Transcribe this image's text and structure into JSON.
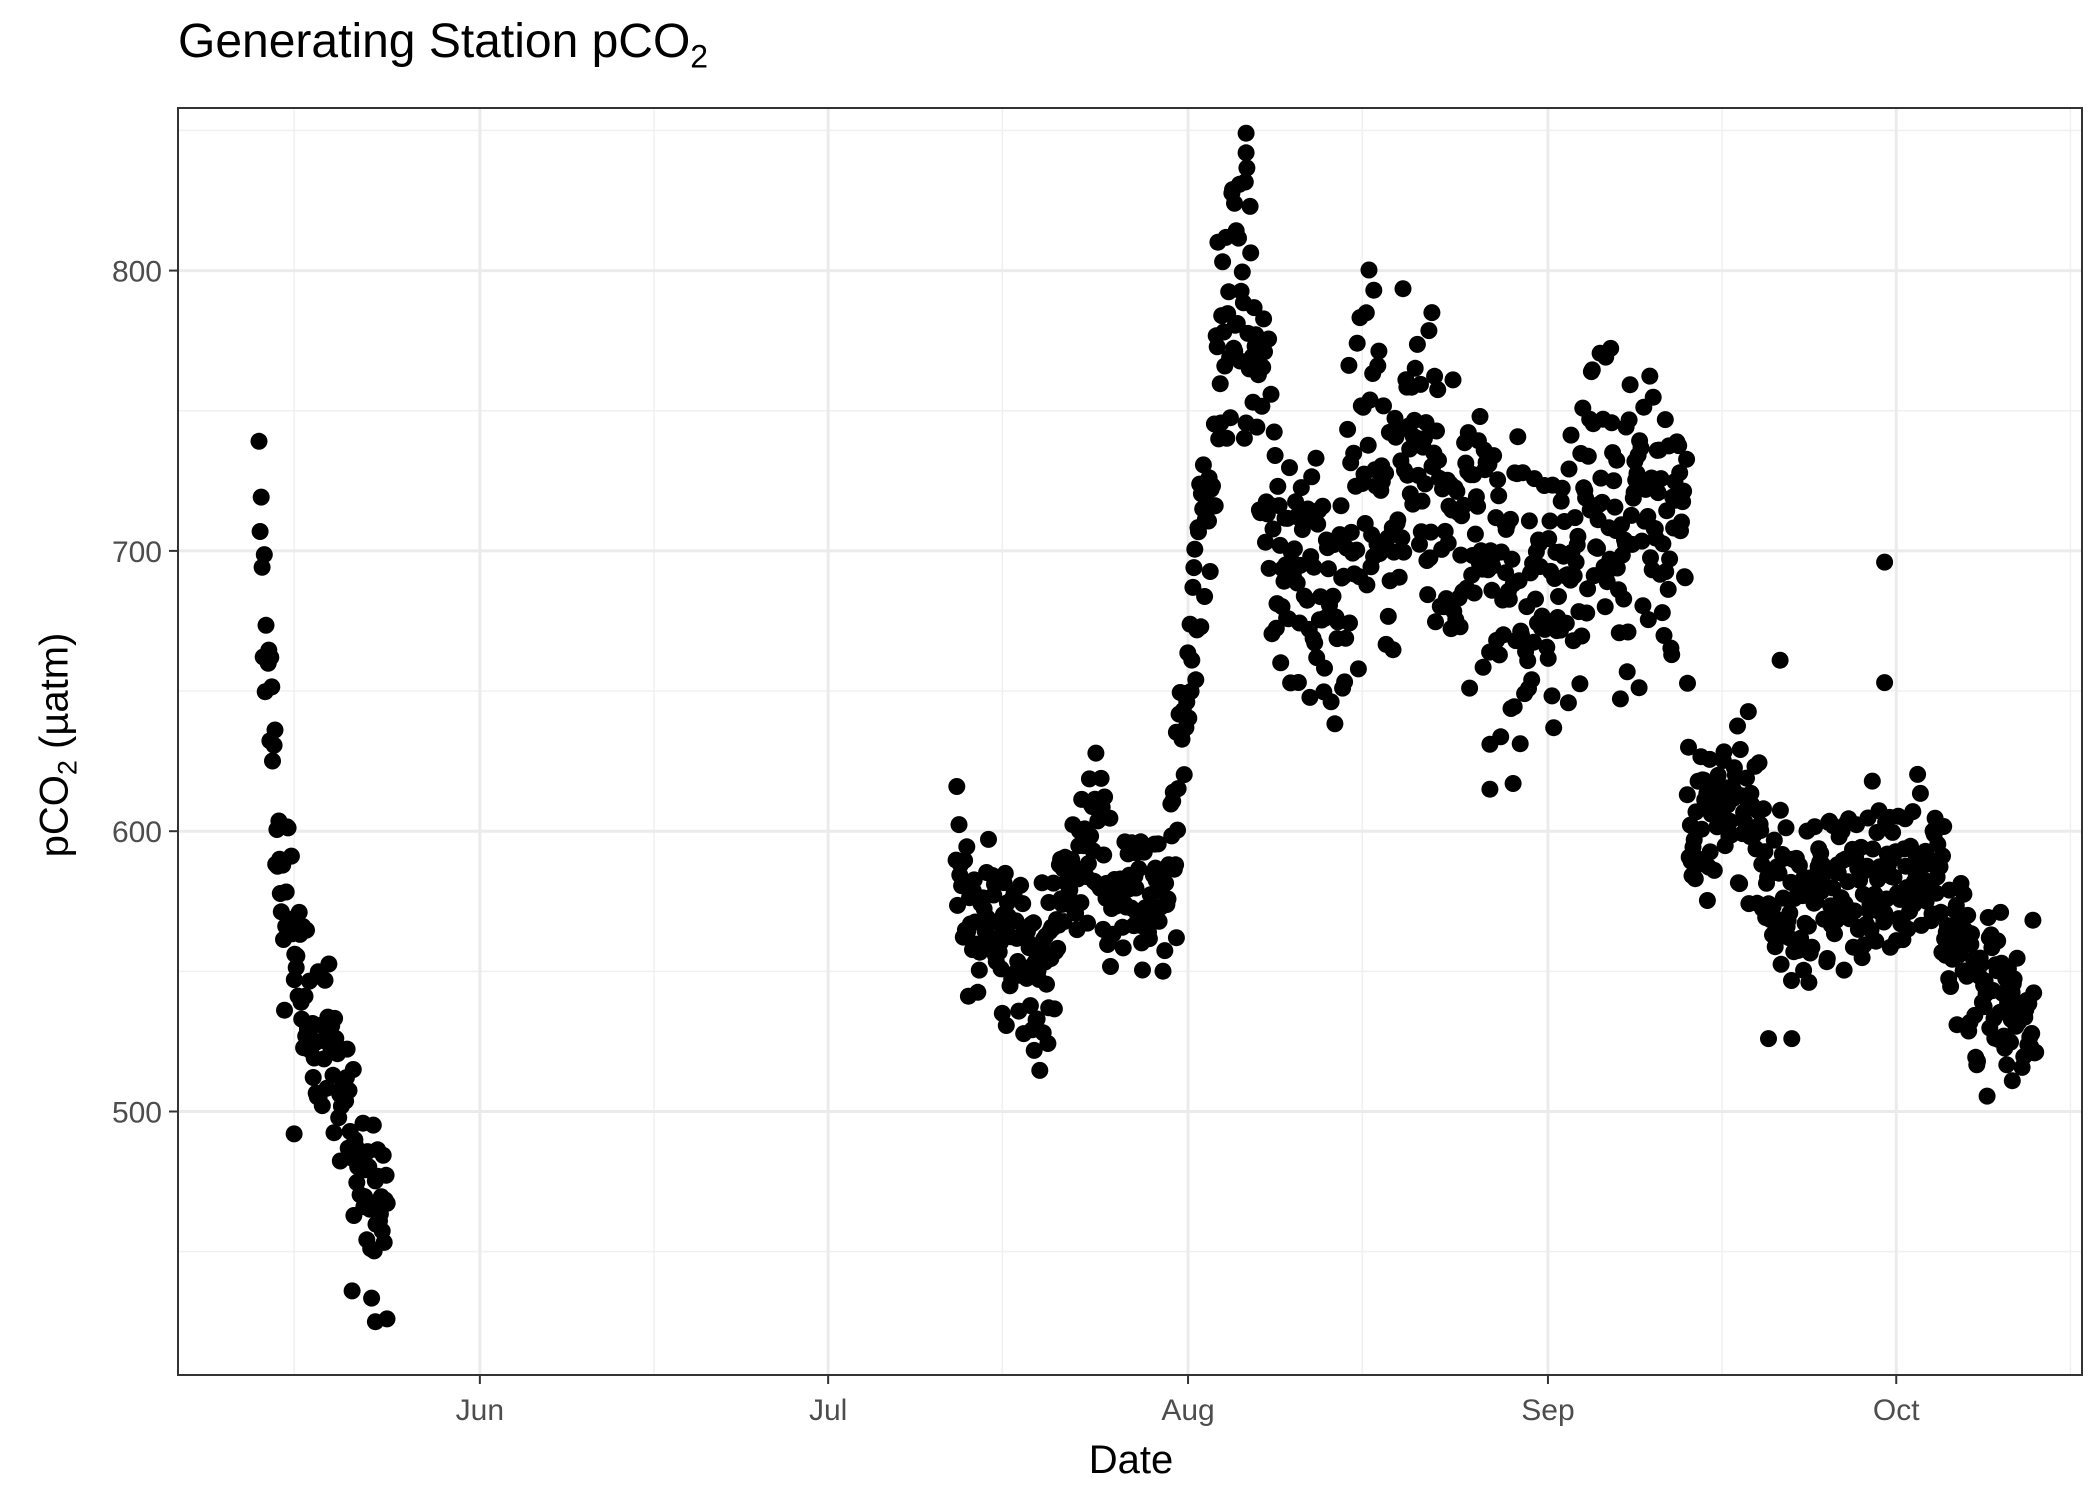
{
  "chart_data": {
    "type": "scatter",
    "title": "Generating Station pCO",
    "title_subscript": "2",
    "xlabel": "Date",
    "ylabel_main": "pCO",
    "ylabel_subscript": "2",
    "ylabel_unit": "(µatm)",
    "x_axis": {
      "type": "date",
      "range": [
        "2023-05-06",
        "2023-10-17"
      ],
      "ticks": [
        {
          "date": "2023-06-01",
          "label": "Jun"
        },
        {
          "date": "2023-07-01",
          "label": "Jul"
        },
        {
          "date": "2023-08-01",
          "label": "Aug"
        },
        {
          "date": "2023-09-01",
          "label": "Sep"
        },
        {
          "date": "2023-10-01",
          "label": "Oct"
        }
      ],
      "minor_ticks": [
        "2023-05-16",
        "2023-06-16",
        "2023-07-16",
        "2023-08-16",
        "2023-09-16",
        "2023-10-16"
      ]
    },
    "y_axis": {
      "range": [
        406,
        858
      ],
      "ticks": [
        500,
        600,
        700,
        800
      ],
      "minor_ticks": [
        450,
        550,
        650,
        750,
        850
      ]
    },
    "grid": true,
    "point_color": "#000000",
    "series_trend": [
      {
        "x": [
          "2023-05-13",
          "2023-05-13 12:00",
          "2023-05-14",
          "2023-05-14 12:00",
          "2023-05-15",
          "2023-05-15 12:00",
          "2023-05-16",
          "2023-05-16 12:00",
          "2023-05-17",
          "2023-05-17 12:00",
          "2023-05-18",
          "2023-05-18 12:00",
          "2023-05-19",
          "2023-05-19 12:00",
          "2023-05-20",
          "2023-05-20 12:00",
          "2023-05-21",
          "2023-05-21 12:00",
          "2023-05-22",
          "2023-05-22 12:00",
          "2023-05-23",
          "2023-05-23 12:00",
          "2023-05-24"
        ],
        "y": [
          720,
          680,
          650,
          600,
          560,
          590,
          570,
          545,
          530,
          535,
          525,
          530,
          515,
          520,
          500,
          510,
          495,
          490,
          470,
          470,
          455,
          460,
          465
        ]
      },
      {
        "x": [
          "2023-07-12",
          "2023-07-13",
          "2023-07-14",
          "2023-07-15",
          "2023-07-16",
          "2023-07-17",
          "2023-07-18",
          "2023-07-19",
          "2023-07-20",
          "2023-07-21",
          "2023-07-22",
          "2023-07-23",
          "2023-07-24",
          "2023-07-25",
          "2023-07-26",
          "2023-07-27",
          "2023-07-28",
          "2023-07-29",
          "2023-07-30",
          "2023-07-31",
          "2023-08-01",
          "2023-08-02",
          "2023-08-03",
          "2023-08-04",
          "2023-08-05",
          "2023-08-06",
          "2023-08-07",
          "2023-08-08",
          "2023-08-09",
          "2023-08-10",
          "2023-08-11",
          "2023-08-12",
          "2023-08-13",
          "2023-08-14",
          "2023-08-15",
          "2023-08-16",
          "2023-08-17",
          "2023-08-18",
          "2023-08-19",
          "2023-08-20",
          "2023-08-21",
          "2023-08-22",
          "2023-08-23",
          "2023-08-24",
          "2023-08-25",
          "2023-08-26",
          "2023-08-27",
          "2023-08-28",
          "2023-08-29",
          "2023-08-30",
          "2023-08-31",
          "2023-09-01",
          "2023-09-02",
          "2023-09-03",
          "2023-09-04",
          "2023-09-05",
          "2023-09-06",
          "2023-09-07",
          "2023-09-08",
          "2023-09-09",
          "2023-09-10",
          "2023-09-11",
          "2023-09-12",
          "2023-09-13"
        ],
        "y": [
          600,
          575,
          565,
          570,
          565,
          560,
          555,
          550,
          555,
          565,
          575,
          590,
          605,
          590,
          575,
          575,
          578,
          580,
          575,
          610,
          660,
          700,
          740,
          770,
          790,
          800,
          760,
          720,
          690,
          680,
          700,
          700,
          690,
          690,
          710,
          730,
          740,
          720,
          710,
          740,
          750,
          730,
          710,
          700,
          700,
          710,
          700,
          690,
          690,
          680,
          680,
          680,
          690,
          700,
          710,
          720,
          720,
          700,
          710,
          720,
          720,
          715,
          715,
          710
        ]
      },
      {
        "x": [
          "2023-09-13",
          "2023-09-14",
          "2023-09-15",
          "2023-09-16",
          "2023-09-17",
          "2023-09-18",
          "2023-09-19",
          "2023-09-20",
          "2023-09-21",
          "2023-09-22",
          "2023-09-23",
          "2023-09-24",
          "2023-09-25",
          "2023-09-26",
          "2023-09-27",
          "2023-09-28",
          "2023-09-29",
          "2023-09-30",
          "2023-10-01",
          "2023-10-02",
          "2023-10-03",
          "2023-10-04",
          "2023-10-05",
          "2023-10-06",
          "2023-10-07",
          "2023-10-08",
          "2023-10-09",
          "2023-10-10",
          "2023-10-11",
          "2023-10-12",
          "2023-10-13"
        ],
        "y": [
          615,
          600,
          600,
          605,
          610,
          612,
          608,
          580,
          575,
          570,
          575,
          580,
          575,
          578,
          582,
          588,
          590,
          585,
          580,
          590,
          595,
          590,
          575,
          560,
          555,
          550,
          545,
          540,
          535,
          530,
          530
        ]
      }
    ],
    "outliers": [
      {
        "x": "2023-08-06",
        "y": 849
      },
      {
        "x": "2023-08-06",
        "y": 842
      },
      {
        "x": "2023-08-05",
        "y": 824
      },
      {
        "x": "2023-08-17",
        "y": 793
      },
      {
        "x": "2023-08-22",
        "y": 785
      },
      {
        "x": "2023-09-30",
        "y": 696
      },
      {
        "x": "2023-09-30",
        "y": 653
      },
      {
        "x": "2023-09-21",
        "y": 661
      },
      {
        "x": "2023-08-27",
        "y": 615
      },
      {
        "x": "2023-08-29",
        "y": 617
      },
      {
        "x": "2023-08-27",
        "y": 631
      },
      {
        "x": "2023-09-20",
        "y": 526
      },
      {
        "x": "2023-09-22",
        "y": 526
      },
      {
        "x": "2023-05-21",
        "y": 436
      },
      {
        "x": "2023-05-23",
        "y": 425
      },
      {
        "x": "2023-05-24",
        "y": 426
      },
      {
        "x": "2023-05-16",
        "y": 492
      },
      {
        "x": "2023-07-16",
        "y": 535
      },
      {
        "x": "2023-07-19",
        "y": 533
      },
      {
        "x": "2023-07-20",
        "y": 537
      },
      {
        "x": "2023-07-31",
        "y": 562
      },
      {
        "x": "2023-10-11",
        "y": 511
      },
      {
        "x": "2023-10-08",
        "y": 518
      }
    ]
  }
}
